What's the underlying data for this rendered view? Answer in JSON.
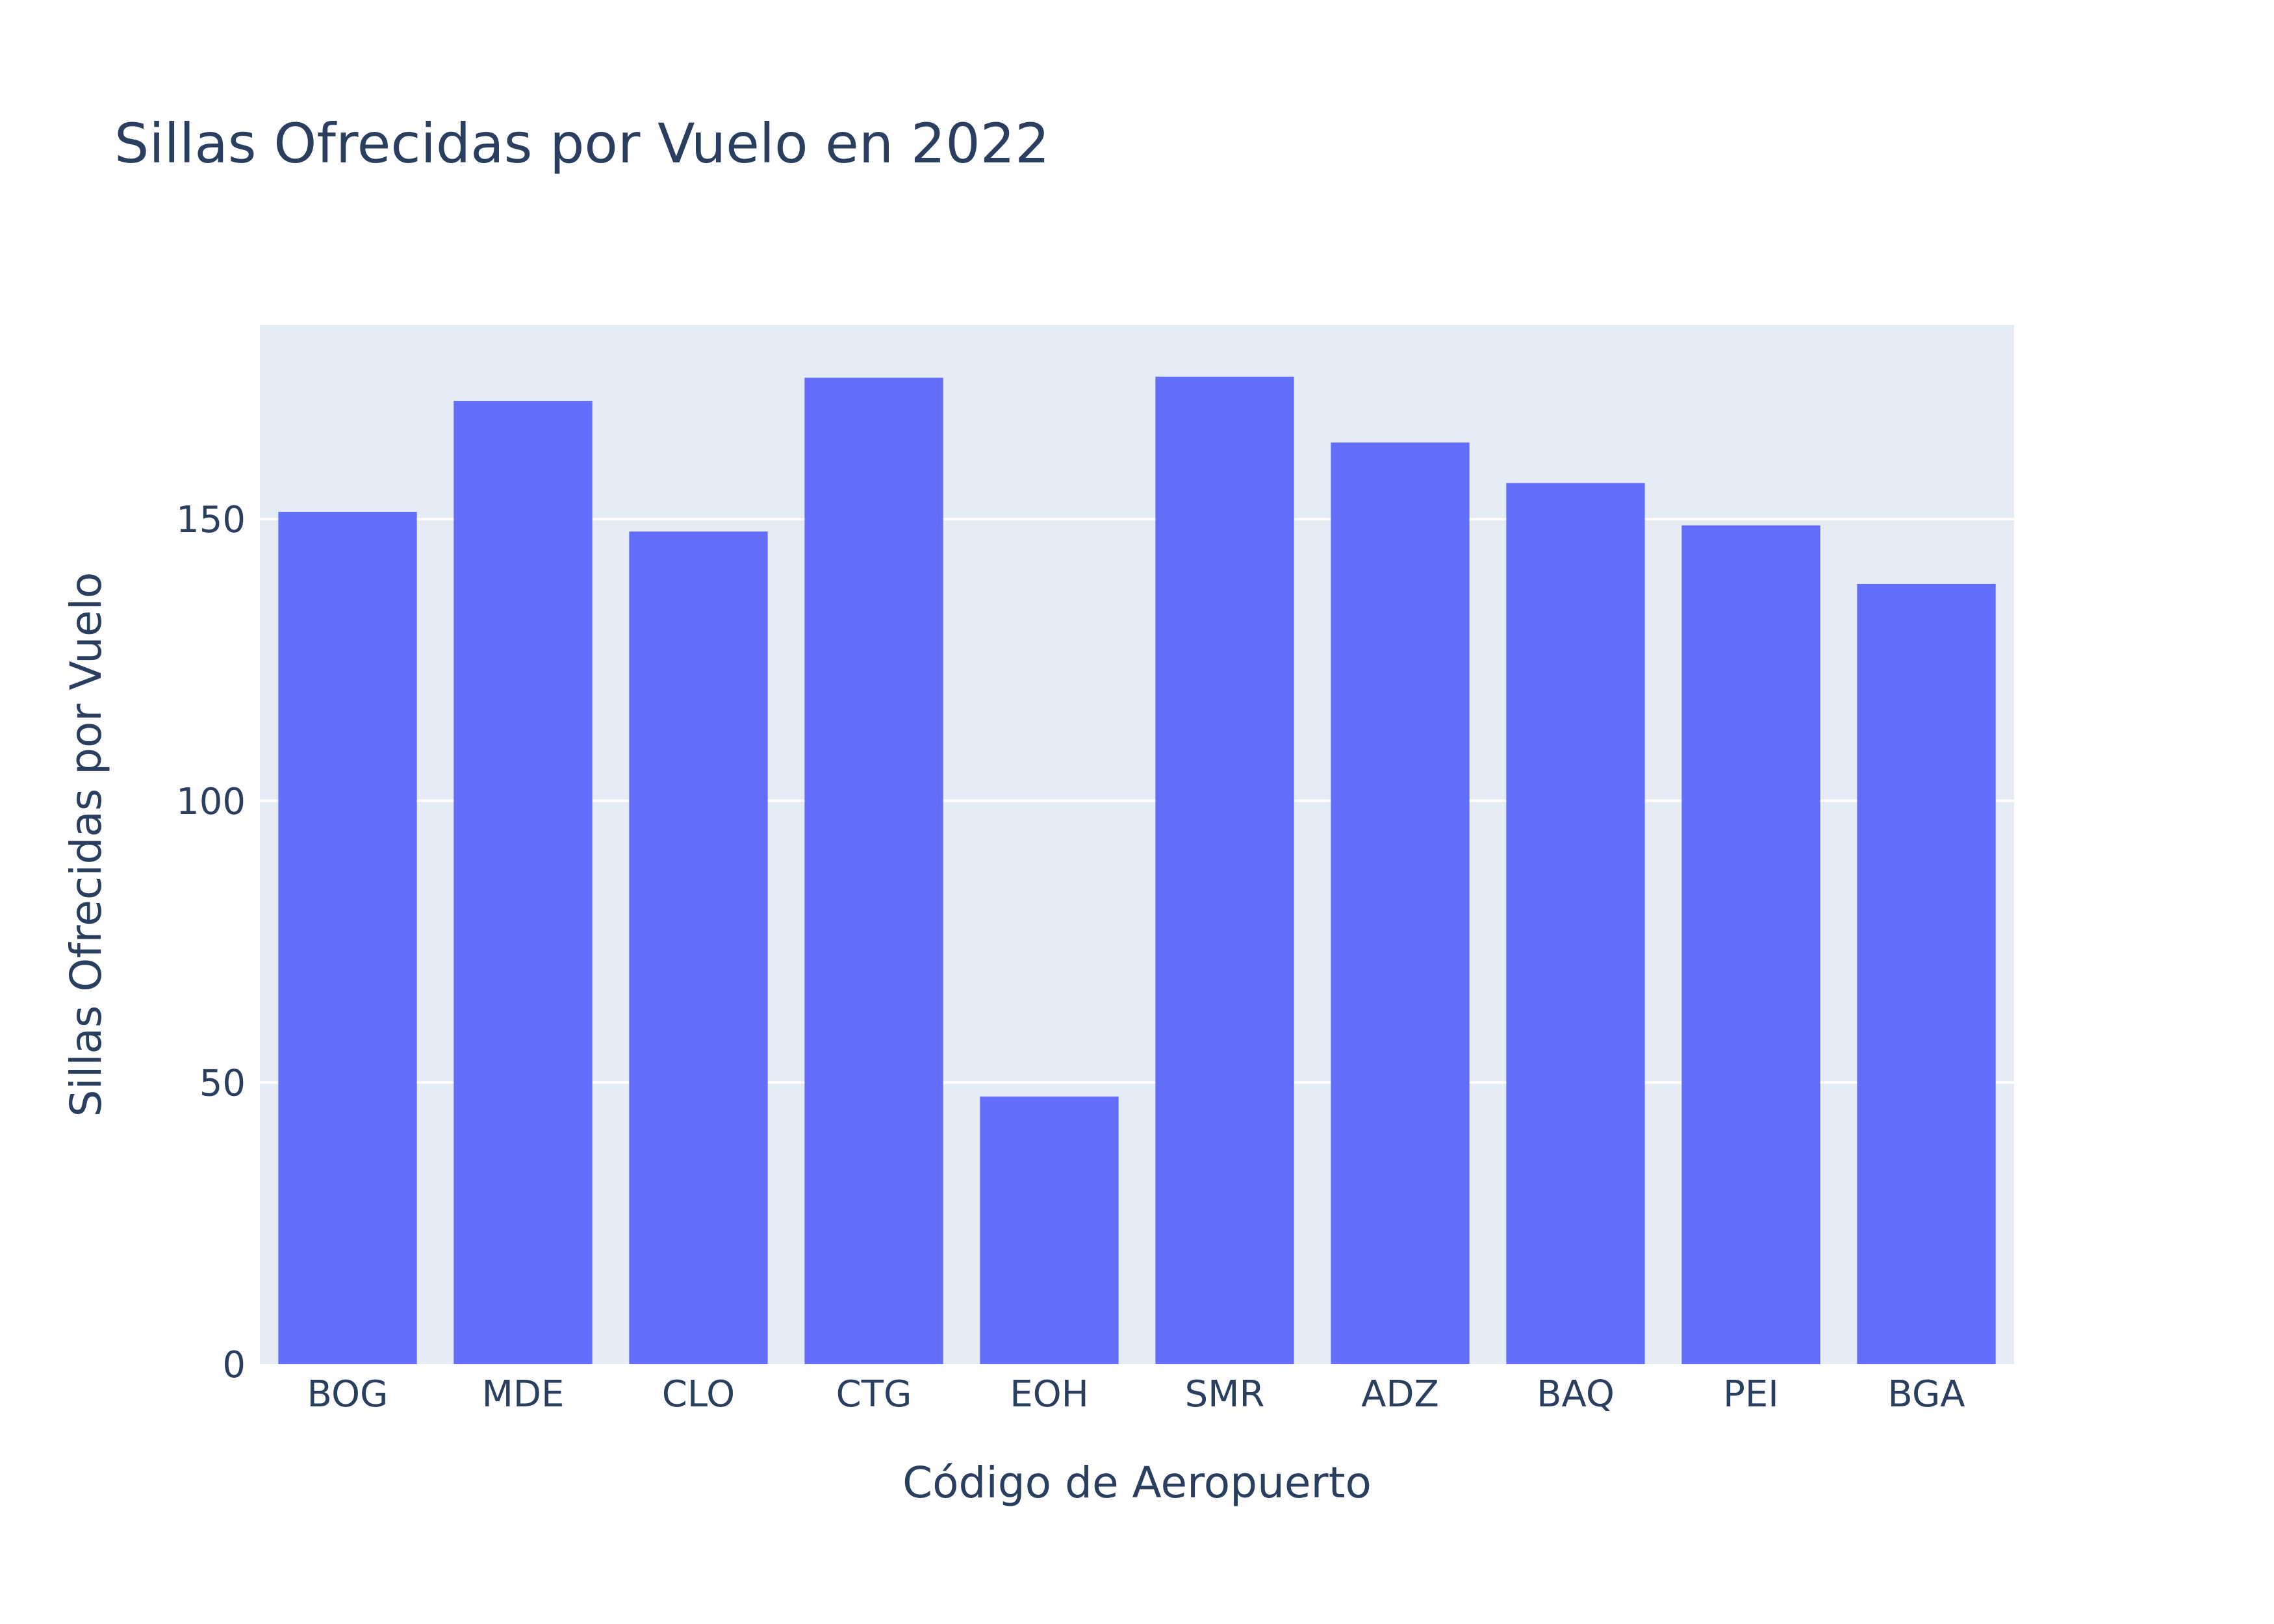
{
  "chart_data": {
    "type": "bar",
    "title": "Sillas Ofrecidas por Vuelo en 2022",
    "xlabel": "Código de Aeropuerto",
    "ylabel": "Sillas Ofrecidas por Vuelo",
    "categories": [
      "BOG",
      "MDE",
      "CLO",
      "CTG",
      "EOH",
      "SMR",
      "ADZ",
      "BAQ",
      "PEI",
      "BGA"
    ],
    "values": [
      151.3,
      171.0,
      147.8,
      175.1,
      47.5,
      175.3,
      163.6,
      156.4,
      148.9,
      138.5
    ],
    "ylim": [
      0,
      184.5
    ],
    "yticks": [
      0,
      50,
      100,
      150
    ],
    "ytick_labels": [
      "0",
      "50",
      "100",
      "150"
    ],
    "grid": true,
    "legend": "none",
    "colors": {
      "bar": "#636efa",
      "plot_bg": "#e5ecf6",
      "grid": "#ffffff",
      "text": "#2a3f5f"
    }
  }
}
